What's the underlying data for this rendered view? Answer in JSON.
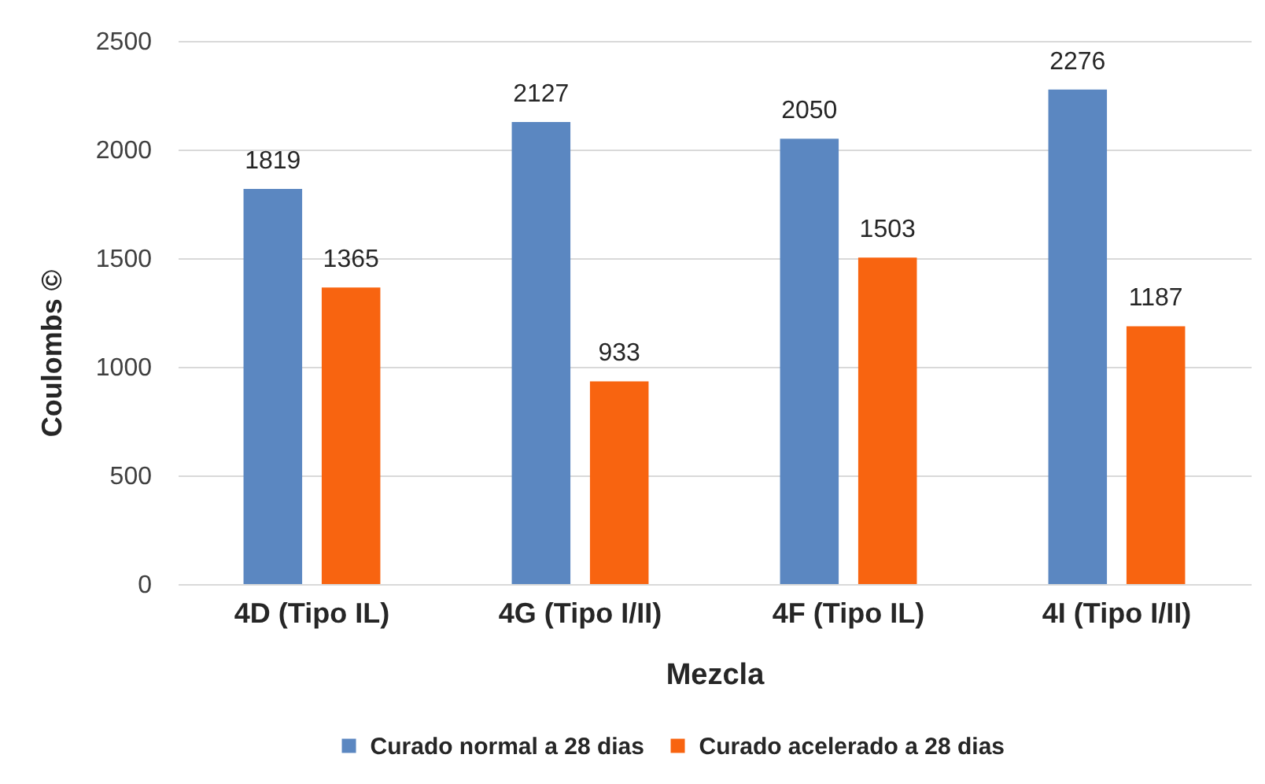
{
  "chart_data": {
    "type": "bar",
    "xlabel": "Mezcla",
    "ylabel": "Coulombs ©",
    "categories": [
      "4D (Tipo IL)",
      "4G (Tipo I/II)",
      "4F (Tipo IL)",
      "4I (Tipo I/II)"
    ],
    "series": [
      {
        "name": "Curado normal a 28 dias",
        "color": "#5b87c1",
        "values": [
          1819,
          2127,
          2050,
          2276
        ]
      },
      {
        "name": "Curado acelerado a 28 dias",
        "color": "#f86410",
        "values": [
          1365,
          933,
          1503,
          1187
        ]
      }
    ],
    "ylim": [
      0,
      2500
    ],
    "yticks": [
      0,
      500,
      1000,
      1500,
      2000,
      2500
    ],
    "grid": "y",
    "data_labels": true,
    "legend": "bottom"
  }
}
